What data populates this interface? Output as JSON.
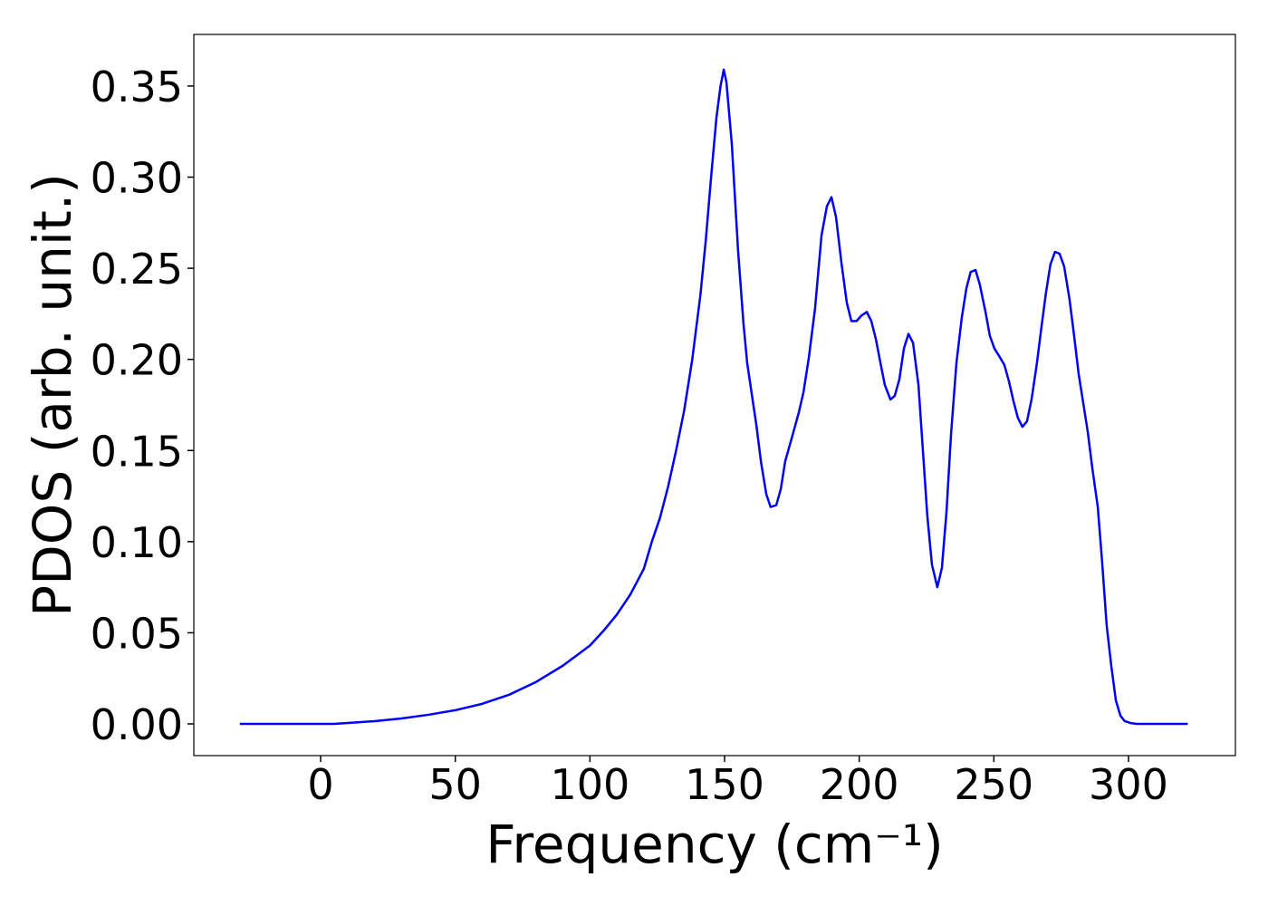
{
  "chart_data": {
    "type": "line",
    "x_label": "Frequency (cm⁻¹)",
    "y_label": "PDOS (arb. unit.)",
    "xlim": [
      -47.1,
      339.7
    ],
    "ylim": [
      -0.0174,
      0.3783
    ],
    "xticks": [
      0,
      50,
      100,
      150,
      200,
      250,
      300
    ],
    "yticks": [
      {
        "value": 0,
        "label": "0.00"
      },
      0.05,
      {
        "value": 0.1,
        "label": "0.10"
      },
      0.15,
      {
        "value": 0.2,
        "label": "0.20"
      },
      0.25,
      {
        "value": 0.3,
        "label": "0.30"
      },
      0.35
    ],
    "grid": false,
    "series": [
      {
        "color": "#0000ff",
        "x": [
          -30,
          -10,
          5,
          10,
          20,
          30,
          40,
          50,
          60,
          70,
          80,
          90,
          100,
          105,
          110,
          115,
          120,
          123,
          126,
          129,
          132,
          135,
          138,
          141,
          143,
          145,
          147,
          148.5,
          149.7,
          150.7,
          152.7,
          155,
          157,
          158.4,
          161.8,
          163.5,
          165.5,
          167.1,
          169.2,
          170.9,
          172.5,
          174.6,
          177.6,
          179.3,
          181.3,
          183.6,
          186,
          188,
          189.7,
          191.4,
          193.4,
          195.4,
          197.1,
          199,
          200.8,
          202.8,
          204.5,
          206.2,
          207.9,
          209.5,
          211.6,
          213.2,
          214.9,
          216.6,
          218.3,
          220,
          222,
          223.7,
          225.3,
          227,
          229,
          230.7,
          232.4,
          234.1,
          236.1,
          238.1,
          239.8,
          241.4,
          243.2,
          244.8,
          246.9,
          248.5,
          250.2,
          251.9,
          253.9,
          255.6,
          257.3,
          258.9,
          260.6,
          262.3,
          264,
          266,
          267.7,
          269.3,
          271,
          272.7,
          274.4,
          276.1,
          278.1,
          279.8,
          281.5,
          283.2,
          284.9,
          286.5,
          288.6,
          290.2,
          291.9,
          293.6,
          295.3,
          297,
          298.6,
          300.7,
          303,
          322
        ],
        "values": [
          0,
          0,
          0,
          0.0005,
          0.0015,
          0.003,
          0.005,
          0.0075,
          0.011,
          0.016,
          0.023,
          0.032,
          0.043,
          0.051,
          0.06,
          0.071,
          0.085,
          0.1,
          0.113,
          0.13,
          0.15,
          0.172,
          0.2,
          0.235,
          0.265,
          0.3,
          0.333,
          0.35,
          0.359,
          0.352,
          0.318,
          0.26,
          0.22,
          0.198,
          0.164,
          0.144,
          0.126,
          0.119,
          0.12,
          0.129,
          0.144,
          0.155,
          0.171,
          0.182,
          0.201,
          0.228,
          0.268,
          0.284,
          0.289,
          0.278,
          0.253,
          0.231,
          0.221,
          0.221,
          0.224,
          0.226,
          0.221,
          0.211,
          0.198,
          0.186,
          0.178,
          0.18,
          0.189,
          0.206,
          0.214,
          0.209,
          0.186,
          0.149,
          0.114,
          0.0875,
          0.075,
          0.0855,
          0.116,
          0.159,
          0.198,
          0.223,
          0.239,
          0.248,
          0.249,
          0.241,
          0.226,
          0.213,
          0.206,
          0.202,
          0.197,
          0.188,
          0.177,
          0.168,
          0.163,
          0.166,
          0.178,
          0.198,
          0.218,
          0.236,
          0.252,
          0.259,
          0.258,
          0.251,
          0.233,
          0.213,
          0.192,
          0.176,
          0.16,
          0.141,
          0.119,
          0.089,
          0.054,
          0.032,
          0.013,
          0.0045,
          0.0015,
          0.0005,
          0,
          0
        ]
      }
    ]
  }
}
